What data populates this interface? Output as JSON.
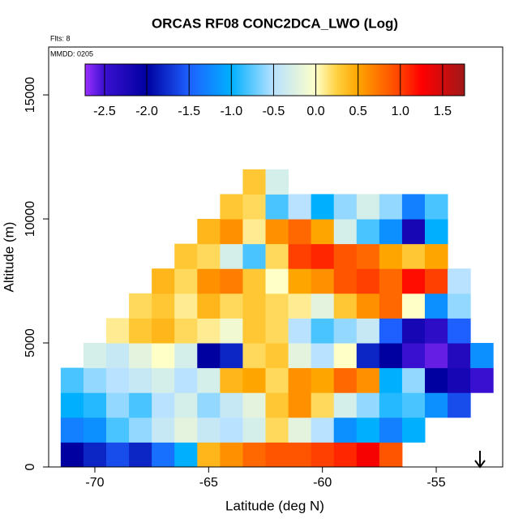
{
  "chart_data": {
    "type": "heatmap",
    "title": "ORCAS RF08 CONC2DCA_LWO (Log)",
    "annotations": [
      "Flts: 8",
      "MMDD: 0205"
    ],
    "x_label": "Latitude (deg N)",
    "y_label": "Altitude (m)",
    "xlim": [
      -72.03,
      -52.08
    ],
    "ylim": [
      0,
      16930
    ],
    "xticks": [
      -70,
      -65,
      -60,
      -55
    ],
    "yticks": [
      0,
      5000,
      10000,
      15000
    ],
    "x": [
      -71,
      -70,
      -69,
      -68,
      -67,
      -66,
      -65,
      -64,
      -63,
      -62,
      -61,
      -60,
      -59,
      -58,
      -57,
      -56,
      -55,
      -54,
      -53
    ],
    "y": [
      500,
      1500,
      2500,
      3500,
      4500,
      5500,
      6500,
      7500,
      8500,
      9500,
      10500,
      11500
    ],
    "values": [
      [
        -2.0,
        -1.8,
        -1.6,
        -1.8,
        -1.4,
        -1.0,
        0.4,
        0.6,
        0.8,
        0.9,
        0.9,
        1.0,
        1.1,
        1.3,
        0.9,
        null,
        null,
        null,
        null
      ],
      [
        -1.3,
        -1.2,
        -0.8,
        -0.6,
        -0.4,
        -0.2,
        -0.4,
        -0.5,
        -0.3,
        0.2,
        -0.2,
        -0.5,
        -1.2,
        -1.0,
        -1.3,
        -1.0,
        null,
        null,
        null
      ],
      [
        -1.0,
        -0.9,
        -0.6,
        -0.8,
        -0.5,
        -0.3,
        -0.6,
        -0.4,
        -0.2,
        0.3,
        0.6,
        0.2,
        -0.3,
        -0.6,
        -0.9,
        -0.8,
        -1.2,
        -1.6,
        null
      ],
      [
        -0.8,
        -0.6,
        -0.5,
        -0.4,
        -0.3,
        -0.5,
        -0.3,
        0.4,
        0.5,
        0.2,
        0.6,
        0.5,
        0.8,
        0.6,
        -1.0,
        -0.6,
        -2.0,
        -2.2,
        -2.5
      ],
      [
        null,
        -0.3,
        -0.4,
        -0.2,
        0.0,
        -0.3,
        -2.0,
        -1.8,
        0.2,
        0.3,
        -0.2,
        -0.5,
        0.0,
        -1.8,
        -2.0,
        -2.5,
        -2.6,
        -2.3,
        -1.2
      ],
      [
        null,
        null,
        0.1,
        0.3,
        0.4,
        0.2,
        0.1,
        -0.1,
        0.3,
        0.2,
        -0.5,
        -0.8,
        -0.6,
        -0.4,
        -1.5,
        -2.2,
        -2.4,
        -1.5,
        null
      ],
      [
        null,
        null,
        null,
        0.2,
        0.3,
        0.1,
        0.4,
        0.2,
        0.3,
        0.2,
        0.1,
        -0.2,
        0.3,
        0.6,
        0.8,
        0.0,
        -1.2,
        -0.6,
        null
      ],
      [
        null,
        null,
        null,
        null,
        0.4,
        0.2,
        0.6,
        0.7,
        0.3,
        0.0,
        0.5,
        0.6,
        0.9,
        1.0,
        0.8,
        1.2,
        1.0,
        -0.5,
        null
      ],
      [
        null,
        null,
        null,
        null,
        null,
        0.3,
        0.2,
        -0.3,
        -0.8,
        0.2,
        1.0,
        1.1,
        0.9,
        0.8,
        0.5,
        0.3,
        0.5,
        null,
        null
      ],
      [
        null,
        null,
        null,
        null,
        null,
        null,
        0.4,
        0.6,
        0.1,
        0.6,
        0.8,
        0.5,
        -0.3,
        -0.8,
        -1.2,
        -2.2,
        -1.0,
        null,
        null
      ],
      [
        null,
        null,
        null,
        null,
        null,
        null,
        null,
        0.3,
        0.2,
        -0.8,
        -0.5,
        -1.0,
        -0.6,
        -0.3,
        -0.6,
        -1.3,
        -0.8,
        null,
        null
      ],
      [
        null,
        null,
        null,
        null,
        null,
        null,
        null,
        null,
        0.3,
        -0.3,
        null,
        null,
        null,
        null,
        null,
        null,
        null,
        null,
        null
      ]
    ],
    "colorbar": {
      "lim": [
        -2.73,
        1.76
      ],
      "ticks": [
        -2.5,
        {
          "value": -2,
          "label": "-2.0"
        },
        -1.5,
        {
          "value": -1,
          "label": "-1.0"
        },
        -0.5,
        {
          "value": 0,
          "label": "0.0"
        },
        0.5,
        {
          "value": 1,
          "label": "1.0"
        },
        1.5
      ],
      "stops": [
        -2.73,
        -2.5,
        -2.0,
        -1.5,
        -1.0,
        -0.5,
        0.0,
        0.25,
        0.5,
        1.0,
        1.25,
        1.76
      ],
      "colors": [
        "#9b30ff",
        "#3a10d0",
        "#0000a0",
        "#1e60ff",
        "#00b0ff",
        "#b8e2ff",
        "#ffffc8",
        "#ffd040",
        "#ffa500",
        "#ff4000",
        "#ff0000",
        "#a01818"
      ]
    }
  }
}
